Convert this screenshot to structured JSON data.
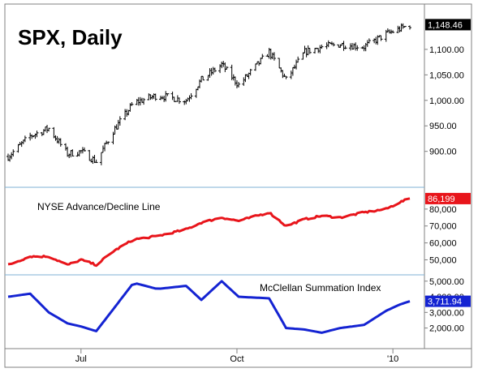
{
  "chart_data": [
    {
      "type": "ohlc",
      "title": "SPX, Daily",
      "ylim": [
        855,
        1165
      ],
      "yticks": [
        {
          "value": 900,
          "label": "900.00"
        },
        {
          "value": 950,
          "label": "950.00"
        },
        {
          "value": 1000,
          "label": "1,000.00"
        },
        {
          "value": 1050,
          "label": "1,050.00"
        },
        {
          "value": 1100,
          "label": "1,100.00"
        }
      ],
      "last_value": 1148.46,
      "last_label": "1,148.46",
      "series": [
        {
          "x": [
            "2009-05-19",
            "2009-06-01",
            "2009-06-12",
            "2009-06-23",
            "2009-07-01",
            "2009-07-10",
            "2009-07-20",
            "2009-08-01",
            "2009-08-15",
            "2009-09-01",
            "2009-09-10",
            "2009-09-22",
            "2009-10-02",
            "2009-10-20",
            "2009-10-30",
            "2009-11-10",
            "2009-11-20",
            "2009-12-01",
            "2009-12-15",
            "2009-12-28",
            "2010-01-05",
            "2010-01-11"
          ],
          "close": [
            890,
            930,
            945,
            895,
            900,
            880,
            940,
            995,
            1010,
            1000,
            1040,
            1070,
            1030,
            1095,
            1040,
            1095,
            1105,
            1110,
            1105,
            1130,
            1140,
            1148
          ]
        }
      ]
    },
    {
      "type": "line",
      "series": [
        {
          "name": "NYSE Advance/Decline Line",
          "x": [
            "2009-05-19",
            "2009-06-01",
            "2009-06-12",
            "2009-06-23",
            "2009-07-01",
            "2009-07-10",
            "2009-07-20",
            "2009-08-01",
            "2009-08-15",
            "2009-09-01",
            "2009-09-10",
            "2009-09-22",
            "2009-10-02",
            "2009-10-20",
            "2009-10-30",
            "2009-11-10",
            "2009-11-20",
            "2009-12-01",
            "2009-12-15",
            "2009-12-28",
            "2010-01-05",
            "2010-01-11"
          ],
          "values": [
            47000,
            52000,
            52000,
            47000,
            50000,
            47000,
            55000,
            62000,
            64000,
            68000,
            72000,
            75000,
            73000,
            78000,
            70000,
            74000,
            76000,
            75000,
            78000,
            80000,
            84000,
            86199
          ]
        }
      ],
      "ylim": [
        44000,
        90000
      ],
      "yticks": [
        {
          "value": 50000,
          "label": "50,000"
        },
        {
          "value": 60000,
          "label": "60,000"
        },
        {
          "value": 70000,
          "label": "70,000"
        },
        {
          "value": 80000,
          "label": "80,000"
        }
      ],
      "last_value": 86199,
      "last_label": "86,199",
      "color": "#e8151b"
    },
    {
      "type": "line",
      "series": [
        {
          "name": "McClellan Summation Index",
          "x": [
            "2009-05-19",
            "2009-06-01",
            "2009-06-12",
            "2009-06-23",
            "2009-07-01",
            "2009-07-10",
            "2009-07-20",
            "2009-08-01",
            "2009-08-15",
            "2009-09-01",
            "2009-09-10",
            "2009-09-22",
            "2009-10-02",
            "2009-10-20",
            "2009-10-30",
            "2009-11-10",
            "2009-11-20",
            "2009-12-01",
            "2009-12-15",
            "2009-12-28",
            "2010-01-05",
            "2010-01-11"
          ],
          "values": [
            4000,
            4200,
            3000,
            2300,
            2100,
            1800,
            3200,
            4900,
            4500,
            4700,
            3800,
            5000,
            4000,
            3900,
            2000,
            1900,
            1700,
            2000,
            2200,
            3100,
            3500,
            3711.94
          ]
        }
      ],
      "ylim": [
        1200,
        5300
      ],
      "yticks": [
        {
          "value": 2000,
          "label": "2,000.00"
        },
        {
          "value": 3000,
          "label": "3,000.00"
        },
        {
          "value": 4000,
          "label": "4,000.00"
        },
        {
          "value": 5000,
          "label": "5,000.00"
        }
      ],
      "last_value": 3711.94,
      "last_label": "3,711.94",
      "color": "#1423d2"
    }
  ],
  "x_axis": {
    "ticks": [
      {
        "date": "2009-07-01",
        "label": "Jul"
      },
      {
        "date": "2009-10-01",
        "label": "Oct"
      },
      {
        "date": "2010-01-01",
        "label": "'10"
      }
    ]
  }
}
